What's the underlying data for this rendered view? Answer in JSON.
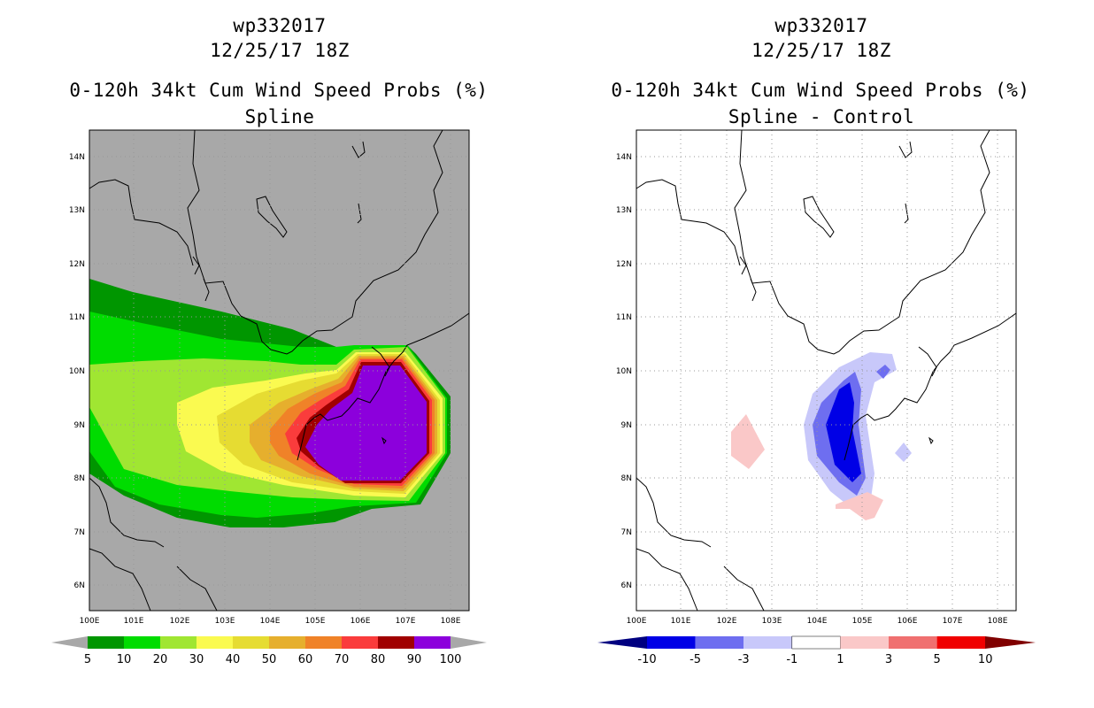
{
  "left": {
    "storm_id": "wp332017",
    "datetime": "12/25/17 18Z",
    "product": "0-120h 34kt Cum Wind Speed Probs (%)",
    "method": "Spline",
    "legend_labels": [
      "5",
      "10",
      "20",
      "30",
      "40",
      "50",
      "60",
      "70",
      "80",
      "90",
      "100"
    ],
    "legend_colors": [
      "#009600",
      "#00dc00",
      "#a0e632",
      "#fafa50",
      "#e6dc32",
      "#e6af2d",
      "#f08228",
      "#fa3c3c",
      "#a00000",
      "#8c00dc"
    ]
  },
  "right": {
    "storm_id": "wp332017",
    "datetime": "12/25/17 18Z",
    "product": "0-120h 34kt Cum Wind Speed Probs (%)",
    "method": "Spline - Control",
    "legend_labels": [
      "-10",
      "-5",
      "-3",
      "-1",
      "1",
      "3",
      "5",
      "10"
    ],
    "legend_colors": [
      "#0000e6",
      "#6e6ef0",
      "#c8c8fa",
      "#ffffff",
      "#fac8c8",
      "#f07070",
      "#f00000"
    ]
  },
  "lon_labels": [
    "100E",
    "101E",
    "102E",
    "103E",
    "104E",
    "105E",
    "106E",
    "107E",
    "108E"
  ],
  "lat_labels": [
    "14N",
    "13N",
    "12N",
    "11N",
    "10N",
    "9N",
    "8N",
    "7N",
    "6N"
  ]
}
